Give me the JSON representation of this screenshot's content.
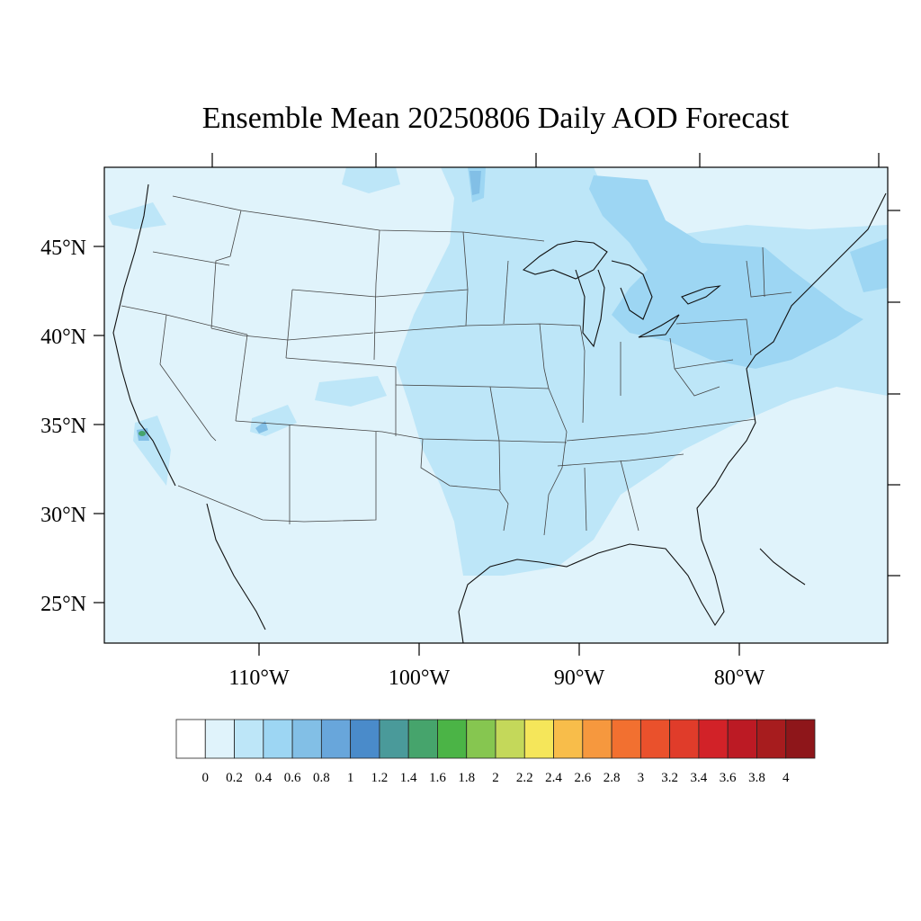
{
  "title": "Ensemble Mean 20250806 Daily AOD Forecast",
  "map": {
    "background_color": "#e0f3fb",
    "lat_labels": [
      {
        "value": 45,
        "text": "45°N"
      },
      {
        "value": 40,
        "text": "40°N"
      },
      {
        "value": 35,
        "text": "35°N"
      },
      {
        "value": 30,
        "text": "30°N"
      },
      {
        "value": 25,
        "text": "25°N"
      }
    ],
    "lon_labels": [
      {
        "value": -110,
        "text": "110°W"
      },
      {
        "value": -100,
        "text": "100°W"
      },
      {
        "value": -90,
        "text": "90°W"
      },
      {
        "value": -80,
        "text": "80°W"
      }
    ]
  },
  "colorbar": {
    "colors": [
      "#ffffff",
      "#e0f3fb",
      "#bde6f8",
      "#9dd6f3",
      "#82bfe6",
      "#68a6db",
      "#4a8bca",
      "#4a9a9a",
      "#46a46c",
      "#4bb446",
      "#86c650",
      "#c4d85a",
      "#f5e65a",
      "#f8bd4a",
      "#f6983e",
      "#f27030",
      "#ea512c",
      "#e03c2a",
      "#d22228",
      "#bc1a24",
      "#a71c1e",
      "#8e161a"
    ],
    "tick_labels": [
      "0",
      "0.2",
      "0.4",
      "0.6",
      "0.8",
      "1",
      "1.2",
      "1.4",
      "1.6",
      "1.8",
      "2",
      "2.2",
      "2.4",
      "2.6",
      "2.8",
      "3",
      "3.2",
      "3.4",
      "3.6",
      "3.8",
      "4"
    ]
  }
}
